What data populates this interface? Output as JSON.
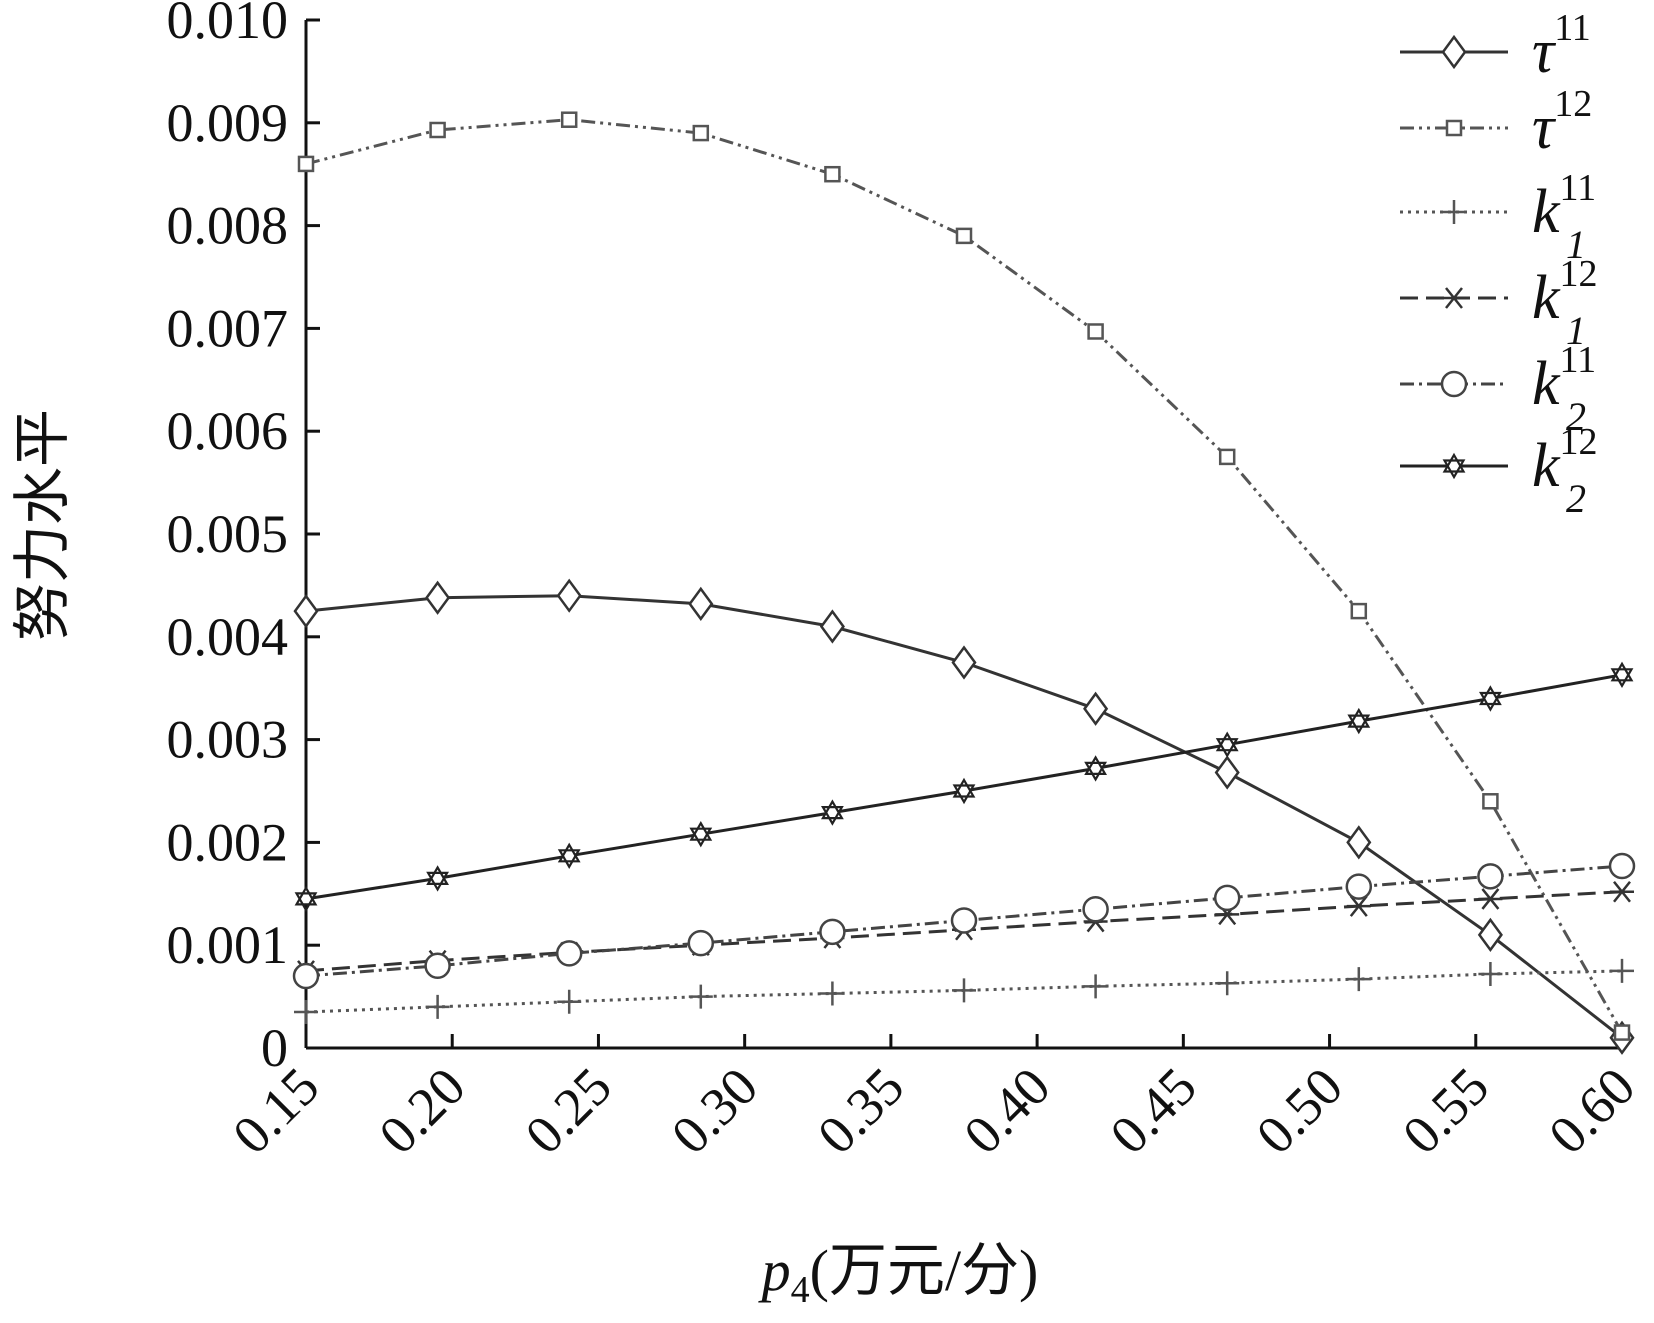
{
  "chart_data": {
    "type": "line",
    "xlabel_sym": "p",
    "xlabel_sub": "4",
    "xlabel_unit": "(万元/分)",
    "ylabel": "努力水平",
    "xlim": [
      0.15,
      0.6
    ],
    "ylim": [
      0,
      0.01
    ],
    "x_ticks": [
      "0.15",
      "0.20",
      "0.25",
      "0.30",
      "0.35",
      "0.40",
      "0.45",
      "0.50",
      "0.55",
      "0.60"
    ],
    "y_ticks": [
      "0",
      "0.001",
      "0.002",
      "0.003",
      "0.004",
      "0.005",
      "0.006",
      "0.007",
      "0.008",
      "0.009",
      "0.010"
    ],
    "x": [
      0.15,
      0.195,
      0.24,
      0.285,
      0.33,
      0.375,
      0.42,
      0.465,
      0.51,
      0.555,
      0.6
    ],
    "series": [
      {
        "key": "tau11",
        "sym": "τ",
        "sub": "",
        "sup": "11",
        "marker": "diamond",
        "dash": "",
        "color": "#333333",
        "values": [
          0.00425,
          0.00438,
          0.0044,
          0.00432,
          0.0041,
          0.00375,
          0.0033,
          0.00268,
          0.002,
          0.0011,
          0.0001
        ]
      },
      {
        "key": "tau12",
        "sym": "τ",
        "sub": "",
        "sup": "12",
        "marker": "square",
        "dash": "14,5,3,5,3,5",
        "color": "#555555",
        "values": [
          0.0086,
          0.00893,
          0.00903,
          0.0089,
          0.0085,
          0.0079,
          0.00697,
          0.00575,
          0.00425,
          0.0024,
          0.00015
        ]
      },
      {
        "key": "k1_11",
        "sym": "k",
        "sub": "1",
        "sup": "11",
        "marker": "plus",
        "dash": "3,5",
        "color": "#555555",
        "values": [
          0.00035,
          0.0004,
          0.00045,
          0.0005,
          0.00053,
          0.00056,
          0.0006,
          0.00063,
          0.00067,
          0.00072,
          0.00075
        ]
      },
      {
        "key": "k1_12",
        "sym": "k",
        "sub": "1",
        "sup": "12",
        "marker": "asterisk",
        "dash": "18,8",
        "color": "#333333",
        "values": [
          0.00075,
          0.00085,
          0.00093,
          0.001,
          0.00107,
          0.00115,
          0.00123,
          0.0013,
          0.00138,
          0.00145,
          0.00152
        ]
      },
      {
        "key": "k2_11",
        "sym": "k",
        "sub": "2",
        "sup": "11",
        "marker": "circle",
        "dash": "14,5,3,5",
        "color": "#444444",
        "values": [
          0.0007,
          0.0008,
          0.00092,
          0.00102,
          0.00113,
          0.00124,
          0.00135,
          0.00146,
          0.00157,
          0.00167,
          0.00177
        ]
      },
      {
        "key": "k2_12",
        "sym": "k",
        "sub": "2",
        "sup": "12",
        "marker": "hexagram",
        "dash": "",
        "color": "#222222",
        "values": [
          0.00145,
          0.00165,
          0.00187,
          0.00208,
          0.00229,
          0.0025,
          0.00272,
          0.00295,
          0.00318,
          0.0034,
          0.00363
        ]
      }
    ],
    "legend_position": "top-right",
    "grid": false
  }
}
